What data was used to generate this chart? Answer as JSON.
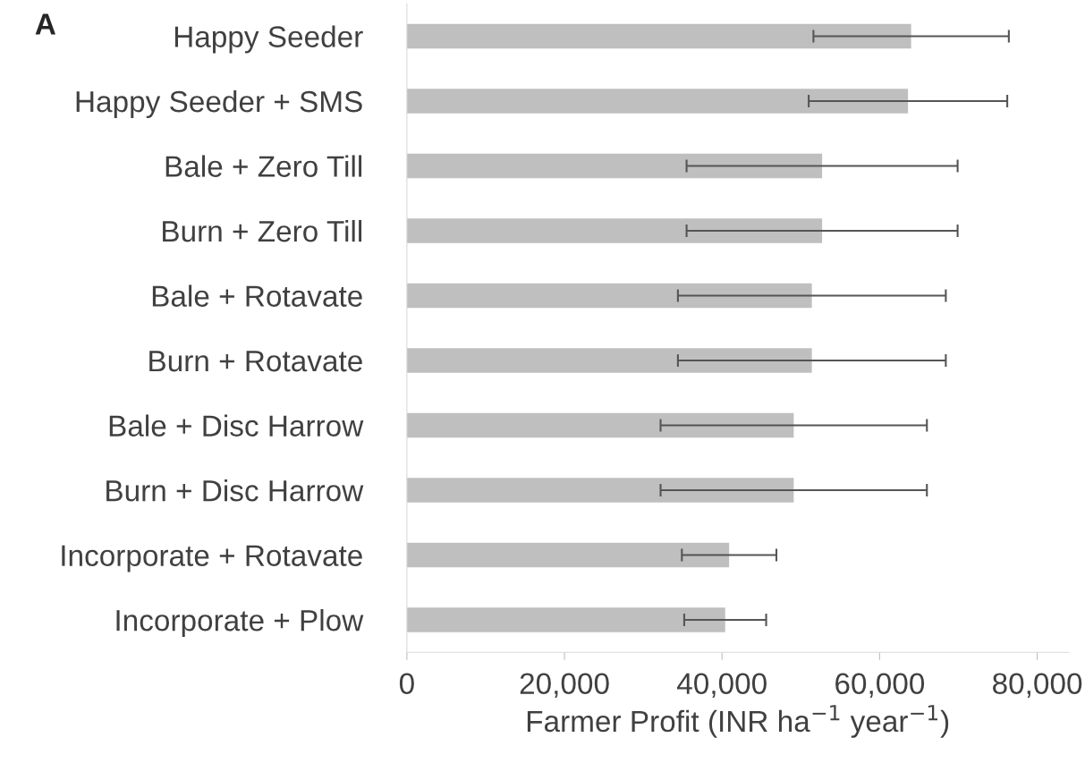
{
  "chart_data": {
    "type": "bar",
    "orientation": "horizontal",
    "categories": [
      "Happy Seeder",
      "Happy Seeder + SMS",
      "Bale + Zero Till",
      "Burn + Zero Till",
      "Bale + Rotavate",
      "Burn + Rotavate",
      "Bale + Disc Harrow",
      "Burn + Disc Harrow",
      "Incorporate + Rotavate",
      "Incorporate + Plow"
    ],
    "values": [
      64000,
      63600,
      52700,
      52700,
      51400,
      51400,
      49100,
      49100,
      40900,
      40400
    ],
    "errors": [
      12400,
      12600,
      17200,
      17200,
      17000,
      17000,
      16900,
      16900,
      6000,
      5200
    ],
    "color": "#bfbfbf",
    "xlabel": "Farmer Profit (INR ha$^{−1}$ year$^{−1}$)",
    "xlim": [
      0,
      84000
    ],
    "xticks": [
      0,
      {
        "value": 20000,
        "label": "20,000"
      },
      {
        "value": 40000,
        "label": "40,000"
      },
      {
        "value": 60000,
        "label": "60,000"
      },
      {
        "value": 80000,
        "label": "80,000"
      }
    ],
    "annotations": [
      "A"
    ]
  }
}
